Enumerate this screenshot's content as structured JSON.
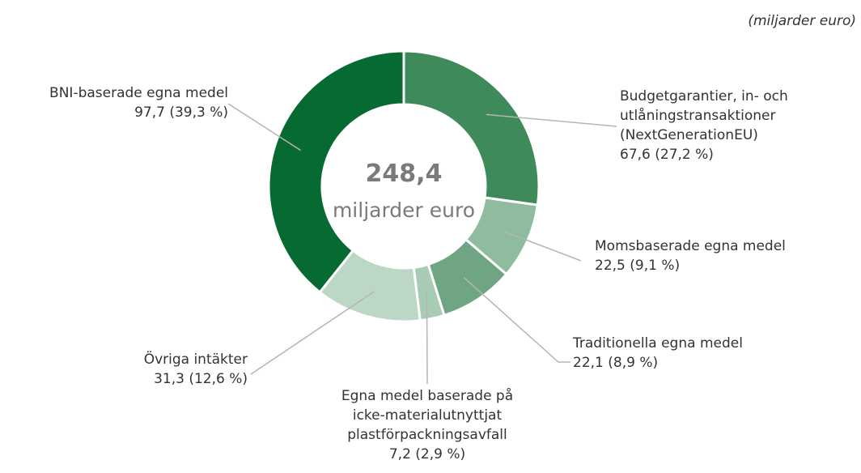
{
  "chart_data": {
    "type": "donut",
    "unit_note": "(miljarder euro)",
    "center_value": {
      "value": 248.4,
      "label": "248,4"
    },
    "center_text": "miljarder euro",
    "categories": [
      "Budgetgarantier, in- och\nutlåningstransaktioner\n(NextGenerationEU)",
      "Momsbaserade egna medel",
      "Traditionella egna medel",
      "Egna medel baserade på\nicke-materialutnyttjat\nplastförpackningsavfall",
      "Övriga intäkter",
      "BNI-baserade egna medel"
    ],
    "values": [
      67.6,
      22.5,
      22.1,
      7.2,
      31.3,
      97.7
    ],
    "value_labels": [
      "67,6 (27,2 %)",
      "22,5 (9,1 %)",
      "22,1 (8,9 %)",
      "7,2 (2,9 %)",
      "31,3 (12,6 %)",
      "97,7 (39,3 %)"
    ],
    "colors": [
      "#3f8a5b",
      "#8fbb9e",
      "#6fa582",
      "#a8cbb3",
      "#bcd7c5",
      "#076a33"
    ]
  }
}
